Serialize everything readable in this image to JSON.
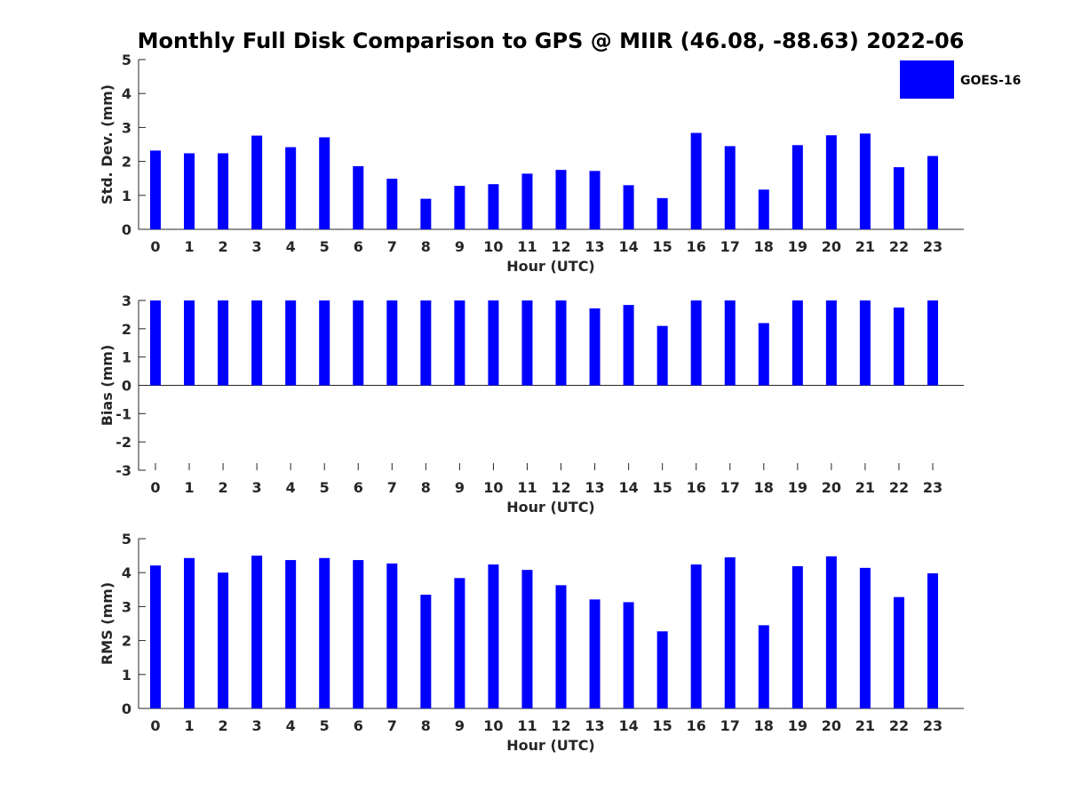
{
  "chart_data": {
    "type": "bar",
    "title": "Monthly Full Disk Comparison to GPS @ MIIR (46.08, -88.63) 2022-06",
    "legend": {
      "label": "GOES-16",
      "placement": "top-right",
      "color": "#0000ff"
    },
    "categories": [
      "0",
      "1",
      "2",
      "3",
      "4",
      "5",
      "6",
      "7",
      "8",
      "9",
      "10",
      "11",
      "12",
      "13",
      "14",
      "15",
      "16",
      "17",
      "18",
      "19",
      "20",
      "21",
      "22",
      "23"
    ],
    "panels": [
      {
        "ylabel": "Std. Dev. (mm)",
        "xlabel": "Hour (UTC)",
        "ylim": [
          0,
          5
        ],
        "yticks": [
          "0",
          "1",
          "2",
          "3",
          "4",
          "5"
        ],
        "series": [
          {
            "name": "GOES-16",
            "values": [
              2.32,
              2.24,
              2.24,
              2.76,
              2.42,
              2.71,
              1.86,
              1.49,
              0.9,
              1.28,
              1.33,
              1.64,
              1.75,
              1.72,
              1.3,
              0.92,
              2.84,
              2.45,
              1.17,
              2.48,
              2.77,
              2.82,
              1.83,
              2.16
            ]
          }
        ]
      },
      {
        "ylabel": "Bias (mm)",
        "xlabel": "Hour (UTC)",
        "ylim": [
          -3,
          3
        ],
        "yticks": [
          "-3",
          "-2",
          "-1",
          "0",
          "1",
          "2",
          "3"
        ],
        "series": [
          {
            "name": "GOES-16",
            "values": [
              3,
              3,
              3,
              3,
              3,
              3,
              3,
              3,
              3,
              3,
              3,
              3,
              3,
              2.72,
              2.84,
              2.1,
              3,
              3,
              2.2,
              3,
              3,
              3,
              2.75,
              3
            ]
          }
        ]
      },
      {
        "ylabel": "RMS (mm)",
        "xlabel": "Hour (UTC)",
        "ylim": [
          0,
          5
        ],
        "yticks": [
          "0",
          "1",
          "2",
          "3",
          "4",
          "5"
        ],
        "series": [
          {
            "name": "GOES-16",
            "values": [
              4.21,
              4.43,
              4.0,
              4.5,
              4.37,
              4.43,
              4.37,
              4.27,
              3.35,
              3.84,
              4.24,
              4.08,
              3.63,
              3.21,
              3.13,
              2.27,
              4.24,
              4.45,
              2.45,
              4.19,
              4.48,
              4.14,
              3.28,
              3.98
            ]
          }
        ]
      }
    ]
  }
}
